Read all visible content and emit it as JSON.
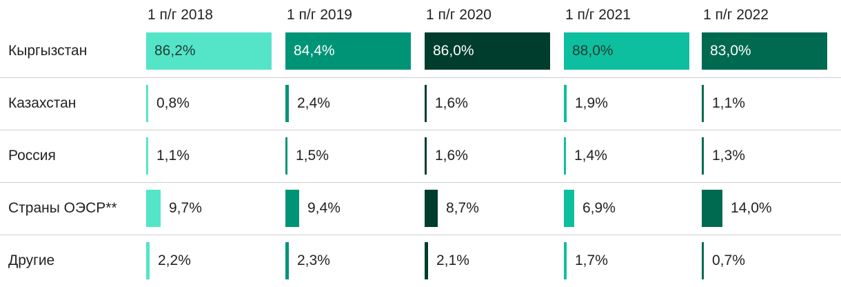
{
  "chart_data": {
    "type": "table",
    "title": "",
    "columns": [
      "1 п/г 2018",
      "1 п/г 2019",
      "1 п/г 2020",
      "1 п/г 2021",
      "1 п/г 2022"
    ],
    "column_colors": [
      "#54e5c8",
      "#009477",
      "#003d2c",
      "#0dbf9e",
      "#006a51"
    ],
    "rows": [
      {
        "label": "Кыргызстан",
        "values": [
          86.2,
          84.4,
          86.0,
          88.0,
          83.0
        ],
        "text": [
          "86,2%",
          "84,4%",
          "86,0%",
          "88,0%",
          "83,0%"
        ]
      },
      {
        "label": "Казахстан",
        "values": [
          0.8,
          2.4,
          1.6,
          1.9,
          1.1
        ],
        "text": [
          "0,8%",
          "2,4%",
          "1,6%",
          "1,9%",
          "1,1%"
        ]
      },
      {
        "label": "Россия",
        "values": [
          1.1,
          1.5,
          1.6,
          1.4,
          1.3
        ],
        "text": [
          "1,1%",
          "1,5%",
          "1,6%",
          "1,4%",
          "1,3%"
        ]
      },
      {
        "label": "Страны ОЭСР**",
        "values": [
          9.7,
          9.4,
          8.7,
          6.9,
          14.0
        ],
        "text": [
          "9,7%",
          "9,4%",
          "8,7%",
          "6,9%",
          "14,0%"
        ]
      },
      {
        "label": "Другие",
        "values": [
          2.2,
          2.3,
          2.1,
          1.7,
          0.7
        ],
        "text": [
          "2,2%",
          "2,3%",
          "2,1%",
          "1,7%",
          "0,7%"
        ]
      }
    ],
    "value_max": 88.0
  }
}
